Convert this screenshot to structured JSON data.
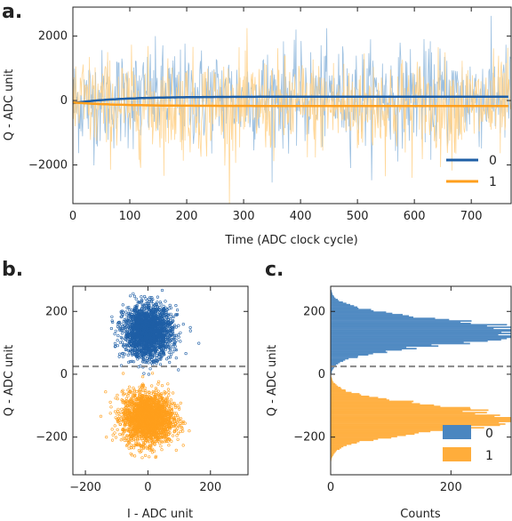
{
  "chart_data": [
    {
      "panel": "a.",
      "type": "line",
      "xlabel": "Time (ADC clock cycle)",
      "ylabel": "Q - ADC unit",
      "xlim": [
        0,
        770
      ],
      "ylim": [
        -3200,
        2900
      ],
      "xticks": [
        0,
        100,
        200,
        300,
        400,
        500,
        600,
        700
      ],
      "yticks": [
        -2000,
        0,
        2000
      ],
      "ytick_labels": [
        "−2000",
        "0",
        "2000"
      ],
      "grid": false,
      "legend": "bottom-right",
      "series": [
        {
          "name": "0",
          "color": "#1f5fa6",
          "light_color": "#90b8dd",
          "mean_final": 120,
          "mean_start": -80,
          "noise_amplitude": 900
        },
        {
          "name": "1",
          "color": "#ff9f1c",
          "light_color": "#ffd28a",
          "mean_final": -170,
          "mean_start": -60,
          "noise_amplitude": 900
        }
      ]
    },
    {
      "panel": "b.",
      "type": "scatter",
      "xlabel": "I - ADC unit",
      "ylabel": "Q - ADC unit",
      "xlim": [
        -240,
        320
      ],
      "ylim": [
        -320,
        280
      ],
      "xticks": [
        -200,
        0,
        200
      ],
      "xtick_labels": [
        "−200",
        "0",
        "200"
      ],
      "yticks": [
        -200,
        0,
        200
      ],
      "ytick_labels": [
        "−200",
        "0",
        "200"
      ],
      "threshold": 25,
      "series": [
        {
          "name": "0",
          "color": "#1f5fa6",
          "center": [
            0,
            135
          ],
          "spread": [
            38,
            40
          ]
        },
        {
          "name": "1",
          "color": "#ff9f1c",
          "center": [
            0,
            -140
          ],
          "spread": [
            40,
            40
          ]
        }
      ]
    },
    {
      "panel": "c.",
      "type": "histogram",
      "xlabel": "Counts",
      "ylabel": "Q - ADC unit",
      "xlim": [
        0,
        300
      ],
      "ylim": [
        -320,
        280
      ],
      "xticks": [
        0,
        200
      ],
      "yticks": [
        -200,
        0,
        200
      ],
      "ytick_labels": [
        "−200",
        "0",
        "200"
      ],
      "threshold": 25,
      "legend": "bottom-right",
      "series": [
        {
          "name": "0",
          "color": "#4a86c0",
          "center": 135,
          "sigma": 40,
          "peak": 310
        },
        {
          "name": "1",
          "color": "#ffad3b",
          "center": -140,
          "sigma": 40,
          "peak": 300
        }
      ]
    }
  ]
}
